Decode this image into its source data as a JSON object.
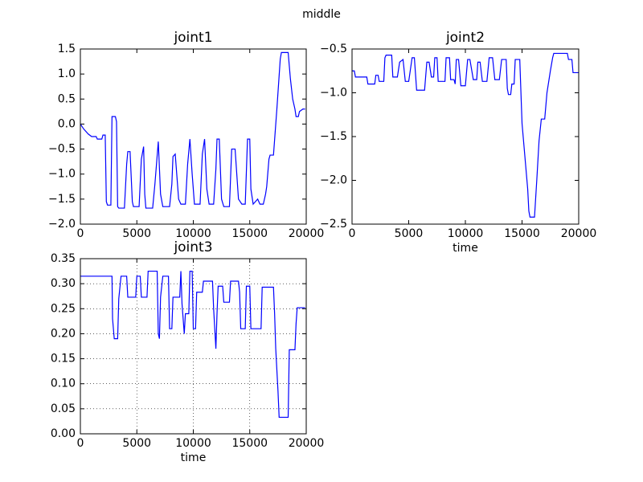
{
  "title": "middle",
  "chart_data": [
    {
      "type": "line",
      "title": "joint1",
      "color": "#0000ff",
      "grid": false,
      "xlim": [
        0,
        20000
      ],
      "xticks": [
        0,
        5000,
        10000,
        15000,
        20000
      ],
      "ylim": [
        -2,
        1.5
      ],
      "yticks": [
        {
          "value": -2,
          "label": "−2.0"
        },
        {
          "value": -1.5,
          "label": "−1.5"
        },
        {
          "value": -1,
          "label": "−1.0"
        },
        {
          "value": -0.5,
          "label": "−0.5"
        },
        {
          "value": 0,
          "label": "0.0"
        },
        0.5,
        {
          "value": 1,
          "label": "1.0"
        },
        1.5
      ],
      "x": [
        0,
        300,
        700,
        1000,
        1400,
        1500,
        1900,
        2000,
        2200,
        2300,
        2400,
        2700,
        2800,
        3100,
        3200,
        3300,
        3400,
        3900,
        4100,
        4200,
        4400,
        4600,
        4700,
        5200,
        5400,
        5600,
        5700,
        5800,
        6400,
        6600,
        6900,
        7100,
        7300,
        7900,
        8100,
        8200,
        8400,
        8700,
        8900,
        9300,
        9500,
        9700,
        9900,
        10100,
        10600,
        10800,
        11000,
        11200,
        11400,
        11800,
        12000,
        12100,
        12300,
        12500,
        12700,
        13200,
        13400,
        13700,
        14000,
        14300,
        14600,
        14800,
        15000,
        15100,
        15300,
        15500,
        15700,
        15900,
        16200,
        16400,
        16500,
        16700,
        16800,
        17100,
        17400,
        17700,
        17800,
        18400,
        18600,
        18800,
        19000,
        19100,
        19300,
        19400,
        19700,
        19900
      ],
      "values": [
        0,
        -0.1,
        -0.2,
        -0.25,
        -0.25,
        -0.3,
        -0.3,
        -0.22,
        -0.22,
        -1.55,
        -1.62,
        -1.62,
        0.15,
        0.15,
        0.05,
        -1.65,
        -1.68,
        -1.68,
        -0.8,
        -0.55,
        -0.55,
        -1.55,
        -1.65,
        -1.65,
        -0.7,
        -0.45,
        -1.4,
        -1.68,
        -1.68,
        -1.2,
        -0.35,
        -1.4,
        -1.65,
        -1.65,
        -1.2,
        -0.65,
        -0.6,
        -1.5,
        -1.6,
        -1.6,
        -0.8,
        -0.3,
        -1.0,
        -1.6,
        -1.6,
        -0.6,
        -0.3,
        -1.3,
        -1.6,
        -1.6,
        -0.9,
        -0.3,
        -0.3,
        -1.5,
        -1.65,
        -1.65,
        -0.5,
        -0.5,
        -1.5,
        -1.6,
        -1.6,
        -0.3,
        -0.3,
        -1.3,
        -1.6,
        -1.55,
        -1.5,
        -1.6,
        -1.6,
        -1.4,
        -1.25,
        -0.7,
        -0.62,
        -0.62,
        0.3,
        1.3,
        1.43,
        1.43,
        0.9,
        0.5,
        0.3,
        0.15,
        0.15,
        0.25,
        0.3,
        0.3
      ]
    },
    {
      "type": "line",
      "title": "joint2",
      "xlabel": "time",
      "color": "#0000ff",
      "grid": false,
      "xlim": [
        0,
        20000
      ],
      "xticks": [
        0,
        5000,
        10000,
        15000,
        20000
      ],
      "ylim": [
        -2.5,
        -0.5
      ],
      "yticks": [
        {
          "value": -2.5,
          "label": "−2.5"
        },
        {
          "value": -2,
          "label": "−2.0"
        },
        {
          "value": -1.5,
          "label": "−1.5"
        },
        {
          "value": -1,
          "label": "−1.0"
        },
        {
          "value": -0.5,
          "label": "−0.5"
        }
      ],
      "x": [
        0,
        200,
        300,
        1300,
        1400,
        2000,
        2100,
        2300,
        2400,
        2800,
        2900,
        3000,
        3500,
        3600,
        4000,
        4200,
        4500,
        4700,
        5000,
        5300,
        5500,
        5700,
        6400,
        6600,
        6800,
        7000,
        7200,
        7300,
        7500,
        7600,
        8200,
        8300,
        8600,
        8700,
        9000,
        9100,
        9200,
        9400,
        9600,
        10000,
        10200,
        10400,
        10700,
        11000,
        11100,
        11300,
        11500,
        11900,
        12100,
        12400,
        12600,
        13000,
        13200,
        13600,
        13700,
        13800,
        14000,
        14100,
        14300,
        14400,
        14800,
        15000,
        15300,
        15500,
        15600,
        15700,
        16100,
        16300,
        16500,
        16700,
        17000,
        17200,
        17500,
        17700,
        17800,
        19000,
        19100,
        19400,
        19500,
        20000
      ],
      "values": [
        -0.75,
        -0.75,
        -0.82,
        -0.82,
        -0.9,
        -0.9,
        -0.8,
        -0.8,
        -0.87,
        -0.87,
        -0.6,
        -0.57,
        -0.57,
        -0.82,
        -0.82,
        -0.65,
        -0.62,
        -0.87,
        -0.87,
        -0.6,
        -0.6,
        -0.97,
        -0.97,
        -0.65,
        -0.65,
        -0.82,
        -0.82,
        -0.6,
        -0.6,
        -0.87,
        -0.87,
        -0.6,
        -0.6,
        -0.85,
        -0.85,
        -0.9,
        -0.62,
        -0.62,
        -0.92,
        -0.92,
        -0.62,
        -0.62,
        -0.85,
        -0.85,
        -0.65,
        -0.65,
        -0.87,
        -0.87,
        -0.6,
        -0.6,
        -0.85,
        -0.85,
        -0.62,
        -0.62,
        -0.95,
        -1.02,
        -1.02,
        -0.9,
        -0.9,
        -0.62,
        -0.62,
        -1.35,
        -1.8,
        -2.1,
        -2.35,
        -2.42,
        -2.42,
        -2.0,
        -1.55,
        -1.3,
        -1.3,
        -1.0,
        -0.75,
        -0.6,
        -0.55,
        -0.55,
        -0.62,
        -0.62,
        -0.77,
        -0.77
      ]
    },
    {
      "type": "line",
      "title": "joint3",
      "xlabel": "time",
      "color": "#0000ff",
      "grid": true,
      "xlim": [
        0,
        20000
      ],
      "xticks": [
        0,
        5000,
        10000,
        15000,
        20000
      ],
      "ylim": [
        0,
        0.35
      ],
      "yticks": [
        {
          "value": 0,
          "label": "0.00"
        },
        0.05,
        {
          "value": 0.1,
          "label": "0.10"
        },
        0.15,
        {
          "value": 0.2,
          "label": "0.20"
        },
        0.25,
        {
          "value": 0.3,
          "label": "0.30"
        },
        0.35
      ],
      "x": [
        0,
        2800,
        2850,
        3000,
        3300,
        3400,
        3600,
        4100,
        4200,
        4900,
        5000,
        5300,
        5400,
        5900,
        6000,
        6800,
        6900,
        7000,
        7100,
        7300,
        7800,
        7900,
        8100,
        8200,
        8800,
        8900,
        9000,
        9200,
        9300,
        9600,
        9700,
        9900,
        10000,
        10200,
        10300,
        10800,
        10900,
        11700,
        11800,
        12000,
        12100,
        12200,
        12600,
        12700,
        13200,
        13300,
        14000,
        14100,
        14200,
        14600,
        14700,
        15000,
        15100,
        16000,
        16100,
        17100,
        17200,
        17300,
        17500,
        17600,
        18400,
        18500,
        19000,
        19100,
        19200,
        19900
      ],
      "values": [
        0.315,
        0.315,
        0.23,
        0.19,
        0.19,
        0.27,
        0.315,
        0.315,
        0.273,
        0.273,
        0.315,
        0.315,
        0.273,
        0.273,
        0.325,
        0.325,
        0.2,
        0.19,
        0.273,
        0.315,
        0.315,
        0.21,
        0.21,
        0.273,
        0.273,
        0.325,
        0.26,
        0.2,
        0.24,
        0.24,
        0.325,
        0.325,
        0.21,
        0.21,
        0.283,
        0.283,
        0.305,
        0.305,
        0.25,
        0.17,
        0.24,
        0.295,
        0.295,
        0.263,
        0.263,
        0.305,
        0.305,
        0.283,
        0.21,
        0.21,
        0.295,
        0.295,
        0.21,
        0.21,
        0.293,
        0.293,
        0.24,
        0.17,
        0.085,
        0.033,
        0.033,
        0.168,
        0.168,
        0.22,
        0.252,
        0.252
      ]
    }
  ]
}
